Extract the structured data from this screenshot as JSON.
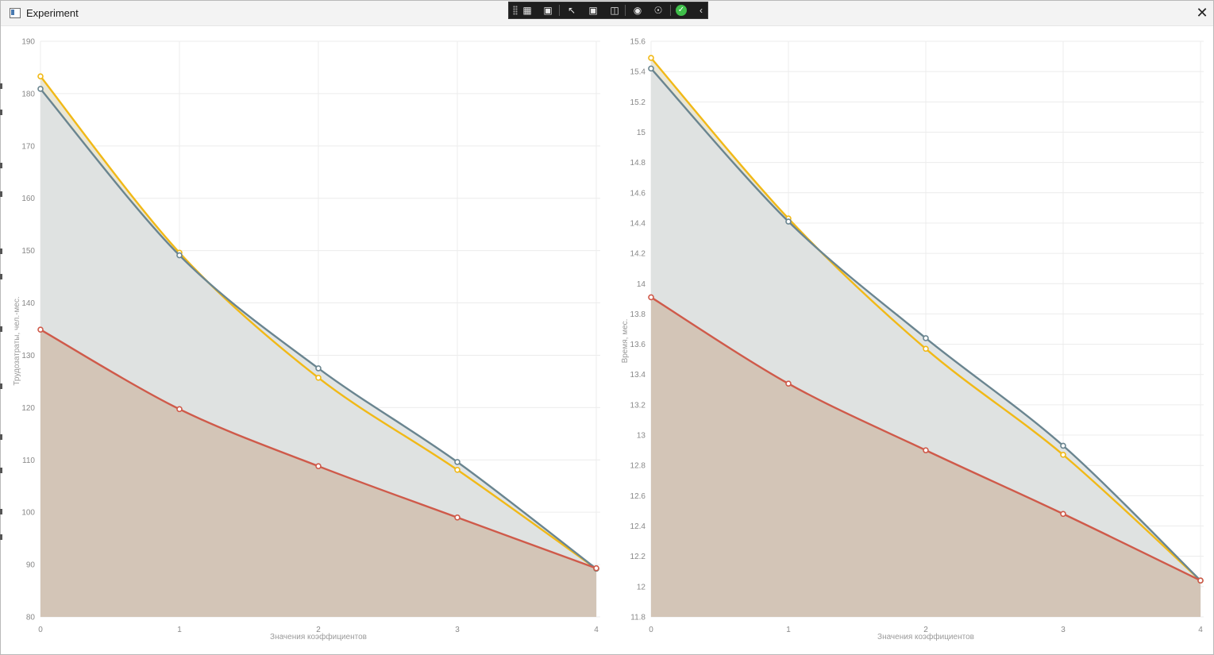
{
  "window": {
    "title": "Experiment",
    "close_icon": "close-icon",
    "app_icon": "window-app-icon"
  },
  "toolbar": {
    "icons": [
      "live-visual-tree-icon",
      "record-icon",
      "select-element-icon",
      "display-layout-adorners-icon",
      "track-focused-element-icon",
      "binding-failures-icon",
      "accessibility-icon",
      "hot-reload-status-icon",
      "collapse-chevron-icon"
    ]
  },
  "colors": {
    "yellow": "#f1b917",
    "slate": "#6a8590",
    "red": "#cf5a4a",
    "fill_yellow": "#e8e4cf",
    "fill_slate": "#dde2e2",
    "fill_red": "#d1c2b3"
  },
  "chart_data": [
    {
      "type": "area",
      "title": "",
      "xlabel": "Значения коэффициентов",
      "ylabel": "Трудозатраты, чел.-мес.",
      "x": [
        0,
        1,
        2,
        3,
        4
      ],
      "xticks": [
        "0",
        "1",
        "2",
        "3",
        "4"
      ],
      "ylim": [
        80,
        190
      ],
      "yticks": [
        "80",
        "90",
        "100",
        "110",
        "120",
        "130",
        "140",
        "150",
        "160",
        "170",
        "180",
        "190"
      ],
      "grid": true,
      "series": [
        {
          "color": "yellow",
          "values": [
            183.3,
            149.6,
            125.7,
            108.1,
            89.2
          ]
        },
        {
          "color": "slate",
          "values": [
            180.9,
            149.1,
            127.5,
            109.6,
            89.2
          ]
        },
        {
          "color": "red",
          "values": [
            134.9,
            119.7,
            108.8,
            99.0,
            89.3
          ]
        }
      ]
    },
    {
      "type": "area",
      "title": "",
      "xlabel": "Значения коэффициентов",
      "ylabel": "Время, мес.",
      "x": [
        0,
        1,
        2,
        3,
        4
      ],
      "xticks": [
        "0",
        "1",
        "2",
        "3",
        "4"
      ],
      "ylim": [
        11.8,
        15.6
      ],
      "yticks": [
        "11.8",
        "12",
        "12.2",
        "12.4",
        "12.6",
        "12.8",
        "13",
        "13.2",
        "13.4",
        "13.6",
        "13.8",
        "14",
        "14.2",
        "14.4",
        "14.6",
        "14.8",
        "15",
        "15.2",
        "15.4",
        "15.6"
      ],
      "grid": true,
      "series": [
        {
          "color": "yellow",
          "values": [
            15.49,
            14.43,
            13.57,
            12.87,
            12.04
          ]
        },
        {
          "color": "slate",
          "values": [
            15.42,
            14.41,
            13.64,
            12.93,
            12.04
          ]
        },
        {
          "color": "red",
          "values": [
            13.91,
            13.34,
            12.9,
            12.48,
            12.04
          ]
        }
      ]
    }
  ]
}
